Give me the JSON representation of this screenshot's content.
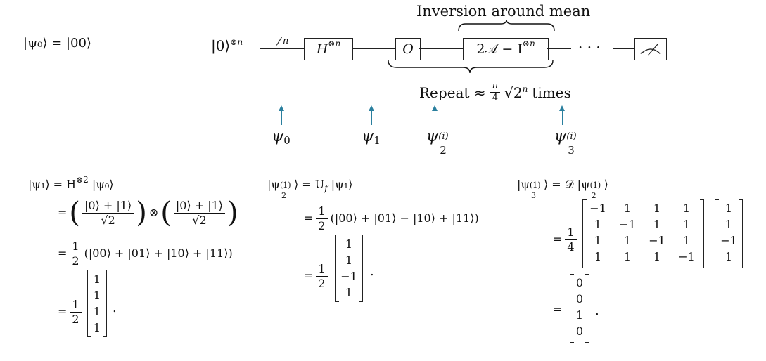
{
  "state0": "|ψ₀⟩ = |00⟩",
  "circuit": {
    "input": "|0⟩",
    "input_exp": "⊗n",
    "bus_label": "n",
    "hadamard": "H",
    "hadamard_exp": "⊗n",
    "oracle": "O",
    "diffusion_a": "2𝒜 − I",
    "diffusion_exp": "⊗n",
    "dots": "· · ·",
    "inversion_label": "Inversion around mean",
    "repeat_prefix": "Repeat ≈",
    "repeat_frac_num": "π",
    "repeat_frac_den": "4",
    "repeat_sqrt": "2",
    "repeat_sqrt_exp": "n",
    "repeat_suffix": "times"
  },
  "markers": {
    "psi0": "ψ",
    "psi0_sub": "0",
    "psi1": "ψ",
    "psi1_sub": "1",
    "psi2": "ψ",
    "psi2_sub": "2",
    "psi2_sup": "(i)",
    "psi3": "ψ",
    "psi3_sub": "3",
    "psi3_sup": "(i)"
  },
  "col1": {
    "lhs": "|ψ₁⟩ = H",
    "lhs_exp": "⊗2",
    "lhs_tail": "|ψ₀⟩",
    "eq": "=",
    "frac_num": "|0⟩ + |1⟩",
    "frac_den": "√2",
    "otimes": "⊗",
    "half_num": "1",
    "half_den": "2",
    "sum": "(|00⟩ + |01⟩ + |10⟩ + |11⟩)",
    "vector": [
      "1",
      "1",
      "1",
      "1"
    ],
    "period": "."
  },
  "col2": {
    "lhs_a": "|ψ",
    "lhs_sup": "(1)",
    "lhs_sub": "2",
    "lhs_b": "⟩ = U",
    "lhs_f": "f",
    "lhs_tail": "|ψ₁⟩",
    "eq": "=",
    "half_num": "1",
    "half_den": "2",
    "sum": "(|00⟩ + |01⟩ − |10⟩ + |11⟩)",
    "vector": [
      "1",
      "1",
      "−1",
      "1"
    ],
    "period": "."
  },
  "col3": {
    "lhs_a": "|ψ",
    "lhs_sup": "(1)",
    "lhs_sub": "3",
    "lhs_b": "⟩ = 𝒟 |ψ",
    "lhs_sup2": "(1)",
    "lhs_sub2": "2",
    "lhs_c": "⟩",
    "eq": "=",
    "quarter_num": "1",
    "quarter_den": "4",
    "matrix": [
      [
        "−1",
        "1",
        "1",
        "1"
      ],
      [
        "1",
        "−1",
        "1",
        "1"
      ],
      [
        "1",
        "1",
        "−1",
        "1"
      ],
      [
        "1",
        "1",
        "1",
        "−1"
      ]
    ],
    "vector": [
      "1",
      "1",
      "−1",
      "1"
    ],
    "result": [
      "0",
      "0",
      "1",
      "0"
    ],
    "period": "."
  },
  "colors": {
    "arrow": "#2a7f9e",
    "ink": "#111111"
  }
}
